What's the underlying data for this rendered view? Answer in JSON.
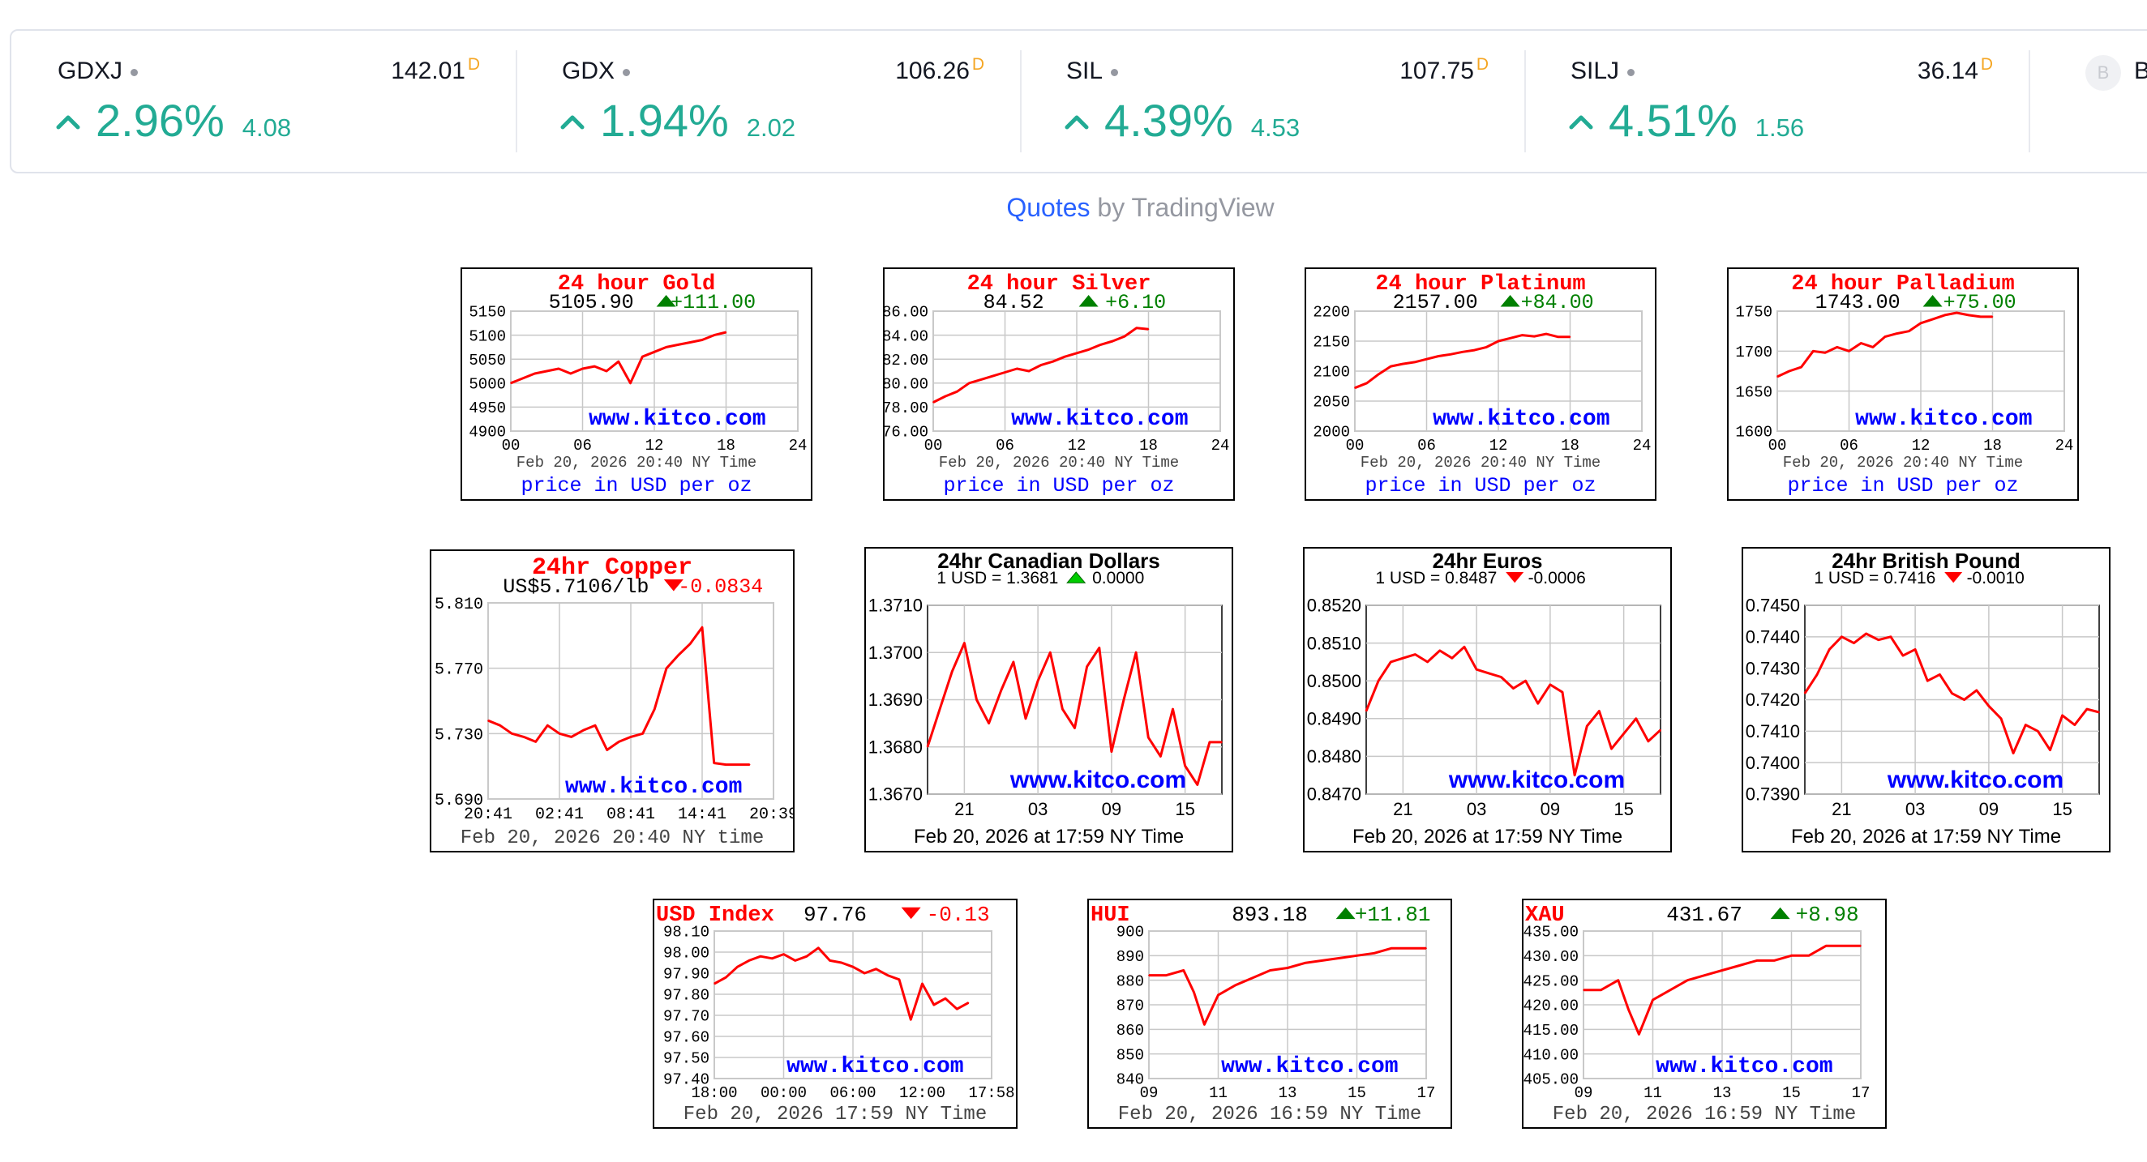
{
  "ticker": [
    {
      "symbol": "GDXJ",
      "price": "142.01",
      "flag": "D",
      "change_pct": "2.96%",
      "change_abs": "4.08"
    },
    {
      "symbol": "GDX",
      "price": "106.26",
      "flag": "D",
      "change_pct": "1.94%",
      "change_abs": "2.02"
    },
    {
      "symbol": "SIL",
      "price": "107.75",
      "flag": "D",
      "change_pct": "4.39%",
      "change_abs": "4.53"
    },
    {
      "symbol": "SILJ",
      "price": "36.14",
      "flag": "D",
      "change_pct": "4.51%",
      "change_abs": "1.56"
    }
  ],
  "ticker_partial": {
    "logo": "B",
    "symbol": "BT"
  },
  "attribution": {
    "link": "Quotes",
    "rest": " by TradingView"
  },
  "colors": {
    "up": "#22ab94",
    "link": "#2962ff",
    "chart_line": "#ff0000",
    "kitco_blue": "#0000ff"
  },
  "chart_data": [
    {
      "id": "gold",
      "type": "line",
      "title": "24 hour Gold",
      "value": "5105.90",
      "change": "+111.00",
      "direction": "up",
      "y_ticks": [
        "5150",
        "5100",
        "5050",
        "5000",
        "4950",
        "4900"
      ],
      "ylim": [
        4900,
        5150
      ],
      "x_ticks": [
        "00",
        "06",
        "12",
        "18",
        "24"
      ],
      "xlim": [
        0,
        24
      ],
      "timestamp": "Feb 20, 2026 20:40 NY Time",
      "unit": "price in USD per oz",
      "watermark": "www.kitco.com",
      "x": [
        0,
        1,
        2,
        3,
        4,
        5,
        6,
        7,
        8,
        9,
        10,
        11,
        12,
        13,
        14,
        15,
        16,
        17,
        18
      ],
      "y": [
        5000,
        5010,
        5020,
        5025,
        5030,
        5020,
        5030,
        5035,
        5025,
        5045,
        5000,
        5055,
        5065,
        5075,
        5080,
        5085,
        5090,
        5100,
        5106
      ]
    },
    {
      "id": "silver",
      "type": "line",
      "title": "24 hour Silver",
      "value": "84.52",
      "change": "+6.10",
      "direction": "up",
      "y_ticks": [
        "86.00",
        "84.00",
        "82.00",
        "80.00",
        "78.00",
        "76.00"
      ],
      "ylim": [
        76,
        86
      ],
      "x_ticks": [
        "00",
        "06",
        "12",
        "18",
        "24"
      ],
      "xlim": [
        0,
        24
      ],
      "timestamp": "Feb 20, 2026 20:40 NY Time",
      "unit": "price in USD per oz",
      "watermark": "www.kitco.com",
      "x": [
        0,
        1,
        2,
        3,
        4,
        5,
        6,
        7,
        8,
        9,
        10,
        11,
        12,
        13,
        14,
        15,
        16,
        17,
        18
      ],
      "y": [
        78.4,
        78.9,
        79.3,
        80.0,
        80.3,
        80.6,
        80.9,
        81.2,
        81.0,
        81.5,
        81.8,
        82.2,
        82.5,
        82.8,
        83.2,
        83.5,
        83.9,
        84.6,
        84.5
      ]
    },
    {
      "id": "platinum",
      "type": "line",
      "title": "24 hour Platinum",
      "value": "2157.00",
      "change": "+84.00",
      "direction": "up",
      "y_ticks": [
        "2200",
        "2150",
        "2100",
        "2050",
        "2000"
      ],
      "ylim": [
        2000,
        2200
      ],
      "x_ticks": [
        "00",
        "06",
        "12",
        "18",
        "24"
      ],
      "xlim": [
        0,
        24
      ],
      "timestamp": "Feb 20, 2026 20:40 NY Time",
      "unit": "price in USD per oz",
      "watermark": "www.kitco.com",
      "x": [
        0,
        1,
        2,
        3,
        4,
        5,
        6,
        7,
        8,
        9,
        10,
        11,
        12,
        13,
        14,
        15,
        16,
        17,
        18
      ],
      "y": [
        2072,
        2080,
        2095,
        2108,
        2112,
        2115,
        2120,
        2125,
        2128,
        2132,
        2135,
        2140,
        2150,
        2155,
        2160,
        2158,
        2162,
        2157,
        2157
      ]
    },
    {
      "id": "palladium",
      "type": "line",
      "title": "24 hour Palladium",
      "value": "1743.00",
      "change": "+75.00",
      "direction": "up",
      "y_ticks": [
        "1750",
        "1700",
        "1650",
        "1600"
      ],
      "ylim": [
        1600,
        1750
      ],
      "x_ticks": [
        "00",
        "06",
        "12",
        "18",
        "24"
      ],
      "xlim": [
        0,
        24
      ],
      "timestamp": "Feb 20, 2026 20:40 NY Time",
      "unit": "price in USD per oz",
      "watermark": "www.kitco.com",
      "x": [
        0,
        1,
        2,
        3,
        4,
        5,
        6,
        7,
        8,
        9,
        10,
        11,
        12,
        13,
        14,
        15,
        16,
        17,
        18
      ],
      "y": [
        1668,
        1675,
        1680,
        1700,
        1698,
        1705,
        1700,
        1710,
        1705,
        1718,
        1722,
        1725,
        1735,
        1740,
        1745,
        1748,
        1745,
        1743,
        1743
      ]
    },
    {
      "id": "copper",
      "type": "line",
      "title": "24hr Copper",
      "value": "US$5.7106/lb",
      "change": "-0.0834",
      "direction": "down",
      "y_ticks": [
        "5.810",
        "5.770",
        "5.730",
        "5.690"
      ],
      "ylim": [
        5.69,
        5.81
      ],
      "x_ticks": [
        "20:41",
        "02:41",
        "08:41",
        "14:41",
        "20:39"
      ],
      "xlim": [
        0,
        24
      ],
      "timestamp": "Feb 20, 2026 20:40 NY time",
      "watermark": "www.kitco.com",
      "x": [
        0,
        1,
        2,
        3,
        4,
        5,
        6,
        7,
        8,
        9,
        10,
        11,
        12,
        13,
        14,
        15,
        16,
        17,
        18,
        19,
        20,
        21,
        22
      ],
      "y": [
        5.738,
        5.735,
        5.73,
        5.728,
        5.725,
        5.735,
        5.73,
        5.728,
        5.732,
        5.735,
        5.72,
        5.725,
        5.728,
        5.73,
        5.745,
        5.77,
        5.778,
        5.785,
        5.795,
        5.712,
        5.711,
        5.711,
        5.711
      ]
    },
    {
      "id": "cad",
      "type": "line",
      "title": "24hr Canadian Dollars",
      "value": "1 USD = 1.3681",
      "change": "0.0000",
      "direction": "up",
      "y_ticks": [
        "1.3710",
        "1.3700",
        "1.3690",
        "1.3680",
        "1.3670"
      ],
      "ylim": [
        1.367,
        1.371
      ],
      "x_ticks": [
        "21",
        "03",
        "09",
        "15"
      ],
      "xlim": [
        0,
        24
      ],
      "timestamp": "Feb 20, 2026 at 17:59 NY Time",
      "watermark": "www.kitco.com",
      "x": [
        0,
        1,
        2,
        3,
        4,
        5,
        6,
        7,
        8,
        9,
        10,
        11,
        12,
        13,
        14,
        15,
        16,
        17,
        18,
        19,
        20,
        21,
        22,
        23,
        24
      ],
      "y": [
        1.368,
        1.3688,
        1.3696,
        1.3702,
        1.369,
        1.3685,
        1.3692,
        1.3698,
        1.3686,
        1.3694,
        1.37,
        1.3688,
        1.3684,
        1.3697,
        1.3701,
        1.3679,
        1.369,
        1.37,
        1.3682,
        1.3678,
        1.3688,
        1.3676,
        1.3672,
        1.3681,
        1.3681
      ]
    },
    {
      "id": "eur",
      "type": "line",
      "title": "24hr Euros",
      "value": "1 USD = 0.8487",
      "change": "-0.0006",
      "direction": "down",
      "y_ticks": [
        "0.8520",
        "0.8510",
        "0.8500",
        "0.8490",
        "0.8480",
        "0.8470"
      ],
      "ylim": [
        0.847,
        0.852
      ],
      "x_ticks": [
        "21",
        "03",
        "09",
        "15"
      ],
      "xlim": [
        0,
        24
      ],
      "timestamp": "Feb 20, 2026 at 17:59 NY Time",
      "watermark": "www.kitco.com",
      "x": [
        0,
        1,
        2,
        3,
        4,
        5,
        6,
        7,
        8,
        9,
        10,
        11,
        12,
        13,
        14,
        15,
        16,
        17,
        18,
        19,
        20,
        21,
        22,
        23,
        24
      ],
      "y": [
        0.8492,
        0.85,
        0.8505,
        0.8506,
        0.8507,
        0.8505,
        0.8508,
        0.8506,
        0.8509,
        0.8503,
        0.8502,
        0.8501,
        0.8498,
        0.85,
        0.8494,
        0.8499,
        0.8497,
        0.8475,
        0.8488,
        0.8492,
        0.8482,
        0.8486,
        0.849,
        0.8484,
        0.8487
      ]
    },
    {
      "id": "gbp",
      "type": "line",
      "title": "24hr British Pound",
      "value": "1 USD = 0.7416",
      "change": "-0.0010",
      "direction": "down",
      "y_ticks": [
        "0.7450",
        "0.7440",
        "0.7430",
        "0.7420",
        "0.7410",
        "0.7400",
        "0.7390"
      ],
      "ylim": [
        0.739,
        0.745
      ],
      "x_ticks": [
        "21",
        "03",
        "09",
        "15"
      ],
      "xlim": [
        0,
        24
      ],
      "timestamp": "Feb 20, 2026 at 17:59 NY Time",
      "watermark": "www.kitco.com",
      "x": [
        0,
        1,
        2,
        3,
        4,
        5,
        6,
        7,
        8,
        9,
        10,
        11,
        12,
        13,
        14,
        15,
        16,
        17,
        18,
        19,
        20,
        21,
        22,
        23,
        24
      ],
      "y": [
        0.7422,
        0.7428,
        0.7436,
        0.744,
        0.7438,
        0.7441,
        0.7439,
        0.744,
        0.7434,
        0.7436,
        0.7426,
        0.7428,
        0.7422,
        0.742,
        0.7423,
        0.7418,
        0.7414,
        0.7403,
        0.7412,
        0.741,
        0.7404,
        0.7415,
        0.7412,
        0.7417,
        0.7416
      ]
    },
    {
      "id": "usd_index",
      "type": "line",
      "title": "USD Index",
      "value": "97.76",
      "change": "-0.13",
      "direction": "down",
      "y_ticks": [
        "98.10",
        "98.00",
        "97.90",
        "97.80",
        "97.70",
        "97.60",
        "97.50",
        "97.40"
      ],
      "ylim": [
        97.4,
        98.1
      ],
      "x_ticks": [
        "18:00",
        "00:00",
        "06:00",
        "12:00",
        "17:58"
      ],
      "xlim": [
        0,
        24
      ],
      "timestamp": "Feb 20, 2026 17:59 NY Time",
      "watermark": "www.kitco.com",
      "x": [
        0,
        1,
        2,
        3,
        4,
        5,
        6,
        7,
        8,
        9,
        10,
        11,
        12,
        13,
        14,
        15,
        16,
        17,
        18,
        19,
        20,
        21,
        22
      ],
      "y": [
        97.85,
        97.88,
        97.93,
        97.96,
        97.98,
        97.97,
        97.99,
        97.96,
        97.98,
        98.02,
        97.96,
        97.95,
        97.93,
        97.9,
        97.92,
        97.89,
        97.87,
        97.68,
        97.85,
        97.75,
        97.78,
        97.73,
        97.76
      ]
    },
    {
      "id": "hui",
      "type": "line",
      "title": "HUI",
      "value": "893.18",
      "change": "+11.81",
      "direction": "up",
      "y_ticks": [
        "900",
        "890",
        "880",
        "870",
        "860",
        "850",
        "840"
      ],
      "ylim": [
        840,
        900
      ],
      "x_ticks": [
        "09",
        "11",
        "13",
        "15",
        "17"
      ],
      "xlim": [
        9,
        17
      ],
      "timestamp": "Feb 20, 2026 16:59 NY Time",
      "watermark": "www.kitco.com",
      "x": [
        9,
        9.5,
        10,
        10.3,
        10.6,
        11,
        11.5,
        12,
        12.5,
        13,
        13.5,
        14,
        14.5,
        15,
        15.5,
        16,
        16.5,
        17
      ],
      "y": [
        882,
        882,
        884,
        875,
        862,
        874,
        878,
        881,
        884,
        885,
        887,
        888,
        889,
        890,
        891,
        893,
        893,
        893
      ]
    },
    {
      "id": "xau",
      "type": "line",
      "title": "XAU",
      "value": "431.67",
      "change": "+8.98",
      "direction": "up",
      "y_ticks": [
        "435.00",
        "430.00",
        "425.00",
        "420.00",
        "415.00",
        "410.00",
        "405.00"
      ],
      "ylim": [
        405,
        435
      ],
      "x_ticks": [
        "09",
        "11",
        "13",
        "15",
        "17"
      ],
      "xlim": [
        9,
        17
      ],
      "timestamp": "Feb 20, 2026 16:59 NY Time",
      "watermark": "www.kitco.com",
      "x": [
        9,
        9.5,
        10,
        10.3,
        10.6,
        11,
        11.5,
        12,
        12.5,
        13,
        13.5,
        14,
        14.5,
        15,
        15.5,
        16,
        16.5,
        17
      ],
      "y": [
        423,
        423,
        425,
        419,
        414,
        421,
        423,
        425,
        426,
        427,
        428,
        429,
        429,
        430,
        430,
        432,
        432,
        432
      ]
    }
  ]
}
